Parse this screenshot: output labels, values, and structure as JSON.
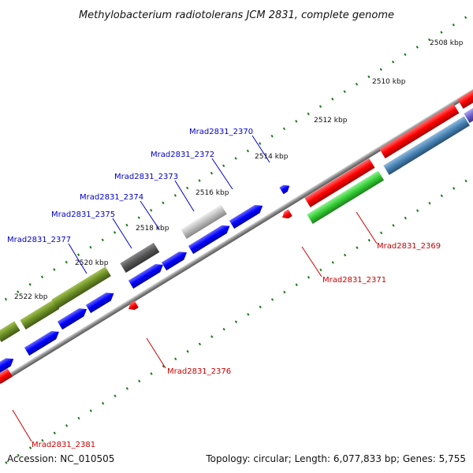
{
  "title": "Methylobacterium radiotolerans JCM 2831, complete genome",
  "accession": "Accession: NC_010505",
  "topology": "Topology: circular; Length: 6,077,833 bp; Genes: 5,755",
  "kbp_ticks": [
    "2508 kbp",
    "2510 kbp",
    "2512 kbp",
    "2514 kbp",
    "2516 kbp",
    "2518 kbp",
    "2520 kbp",
    "2522 kbp"
  ],
  "genes": [
    {
      "label": "Mrad2831_2370",
      "color": "#0000cc"
    },
    {
      "label": "Mrad2831_2372",
      "color": "#0000cc"
    },
    {
      "label": "Mrad2831_2373",
      "color": "#0000cc"
    },
    {
      "label": "Mrad2831_2374",
      "color": "#0000cc"
    },
    {
      "label": "Mrad2831_2375",
      "color": "#0000cc"
    },
    {
      "label": "Mrad2831_2377",
      "color": "#0000cc"
    },
    {
      "label": "Mrad2831_2369",
      "color": "#cc0000"
    },
    {
      "label": "Mrad2831_2371",
      "color": "#cc0000"
    },
    {
      "label": "Mrad2831_2376",
      "color": "#cc0000"
    },
    {
      "label": "Mrad2831_2381",
      "color": "#cc0000"
    }
  ],
  "colors": {
    "forward_cds": "#0000ff",
    "reverse_cds": "#ff0000",
    "olive": "#6b8e23",
    "green": "#33cc33",
    "steelblue": "#4682b4",
    "gray_dark": "#555555",
    "gray_light": "#bbbbbb",
    "backbone": "#999999",
    "ticks": "#1a7a1a"
  }
}
